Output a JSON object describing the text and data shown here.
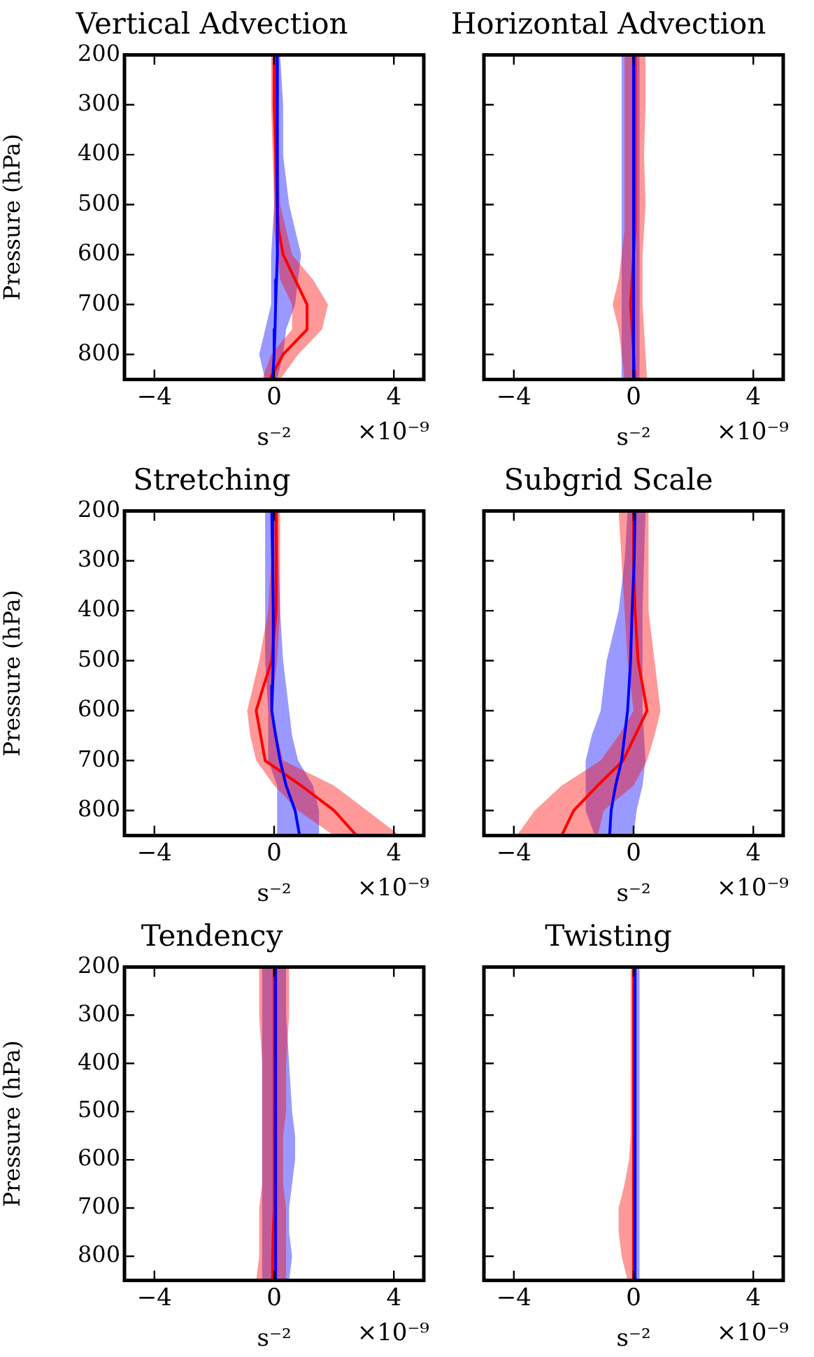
{
  "chart_data": [
    {
      "type": "line",
      "orientation": "horizontal",
      "title": "Vertical Advection",
      "xlabel": "s⁻²",
      "ylabel": "Pressure (hPa)",
      "annotations": [
        "×10⁻⁹"
      ],
      "x": [
        200,
        300,
        400,
        500,
        550,
        600,
        650,
        700,
        750,
        800,
        850
      ],
      "xlim": [
        -5,
        5
      ],
      "xticks": [
        -4,
        0,
        4
      ],
      "ylim": [
        850,
        200
      ],
      "yticks": [
        200,
        300,
        400,
        500,
        600,
        700,
        800
      ],
      "series": [
        {
          "color": "#0000ff",
          "values": [
            0.1,
            0.1,
            0.12,
            0.12,
            0.1,
            0.1,
            0.08,
            0.05,
            0.03,
            0,
            -0.05
          ],
          "lower": [
            0,
            0,
            0,
            0,
            -0.05,
            -0.1,
            -0.1,
            -0.1,
            -0.3,
            -0.5,
            -0.3
          ],
          "upper": [
            0.2,
            0.3,
            0.3,
            0.5,
            0.7,
            0.9,
            0.8,
            0.7,
            0.4,
            0.3,
            0.1
          ]
        },
        {
          "color": "#ff0000",
          "values": [
            0,
            0,
            0.05,
            0.1,
            0.15,
            0.3,
            0.7,
            1.1,
            1.1,
            0.3,
            -0.15
          ],
          "lower": [
            -0.1,
            -0.1,
            -0.05,
            0,
            0,
            0.1,
            0.2,
            0.6,
            0.6,
            -0.1,
            -0.4
          ],
          "upper": [
            0.1,
            0.1,
            0.15,
            0.2,
            0.4,
            0.6,
            1.3,
            1.8,
            1.6,
            0.8,
            0.2
          ]
        }
      ]
    },
    {
      "type": "line",
      "orientation": "horizontal",
      "title": "Horizontal Advection",
      "xlabel": "s⁻²",
      "annotations": [
        "×10⁻⁹"
      ],
      "tick_labels": "x",
      "x": [
        200,
        300,
        400,
        500,
        550,
        600,
        650,
        700,
        750,
        800,
        850
      ],
      "xlim": [
        -5,
        5
      ],
      "xticks": [
        -4,
        0,
        4
      ],
      "ylim": [
        850,
        200
      ],
      "yticks": [
        200,
        300,
        400,
        500,
        600,
        700,
        800
      ],
      "series": [
        {
          "color": "#0000ff",
          "values": [
            0,
            0,
            0,
            0,
            0,
            0,
            0,
            0,
            0,
            0,
            0
          ],
          "lower": [
            -0.4,
            -0.4,
            -0.4,
            -0.4,
            -0.4,
            -0.4,
            -0.4,
            -0.4,
            -0.4,
            -0.4,
            -0.4
          ],
          "upper": [
            0.2,
            0.2,
            0.2,
            0.2,
            0.2,
            0.2,
            0.2,
            0.2,
            0.2,
            0.2,
            0.2
          ]
        },
        {
          "color": "#ff0000",
          "values": [
            0.05,
            0.05,
            0.05,
            0.05,
            0.05,
            0,
            -0.05,
            -0.1,
            -0.05,
            0,
            0.05
          ],
          "lower": [
            -0.3,
            -0.3,
            -0.3,
            -0.3,
            -0.3,
            -0.4,
            -0.5,
            -0.7,
            -0.5,
            -0.4,
            -0.3
          ],
          "upper": [
            0.4,
            0.4,
            0.35,
            0.4,
            0.35,
            0.3,
            0.3,
            0.3,
            0.35,
            0.4,
            0.45
          ]
        }
      ]
    },
    {
      "type": "line",
      "orientation": "horizontal",
      "title": "Stretching",
      "xlabel": "s⁻²",
      "ylabel": "Pressure (hPa)",
      "annotations": [
        "×10⁻⁹"
      ],
      "x": [
        200,
        300,
        400,
        500,
        550,
        600,
        650,
        700,
        750,
        800,
        850
      ],
      "xlim": [
        -5,
        5
      ],
      "xticks": [
        -4,
        0,
        4
      ],
      "ylim": [
        850,
        200
      ],
      "yticks": [
        200,
        300,
        400,
        500,
        600,
        700,
        800
      ],
      "series": [
        {
          "color": "#0000ff",
          "values": [
            -0.08,
            -0.05,
            -0.03,
            -0.03,
            -0.05,
            -0.08,
            0.05,
            0.2,
            0.4,
            0.7,
            0.85
          ],
          "lower": [
            -0.3,
            -0.3,
            -0.3,
            -0.3,
            -0.25,
            -0.2,
            -0.2,
            -0.2,
            0.1,
            0.1,
            0.1
          ],
          "upper": [
            0.1,
            0.15,
            0.2,
            0.3,
            0.4,
            0.5,
            0.6,
            0.8,
            1.3,
            1.5,
            1.5
          ]
        },
        {
          "color": "#ff0000",
          "values": [
            0.08,
            0.08,
            0.05,
            -0.08,
            -0.35,
            -0.6,
            -0.45,
            -0.3,
            0.9,
            2,
            2.75
          ],
          "lower": [
            -0.1,
            -0.1,
            -0.2,
            -0.5,
            -0.7,
            -0.9,
            -0.8,
            -0.6,
            0,
            0.8,
            2
          ],
          "upper": [
            0.2,
            0.2,
            0.2,
            0.1,
            0,
            -0.1,
            0.1,
            0.3,
            2,
            3.1,
            4.2
          ]
        }
      ]
    },
    {
      "type": "line",
      "orientation": "horizontal",
      "title": "Subgrid Scale",
      "xlabel": "s⁻²",
      "annotations": [
        "×10⁻⁹"
      ],
      "tick_labels": "x",
      "x": [
        200,
        300,
        400,
        500,
        550,
        600,
        650,
        700,
        750,
        800,
        850
      ],
      "xlim": [
        -5,
        5
      ],
      "xticks": [
        -4,
        0,
        4
      ],
      "ylim": [
        850,
        200
      ],
      "yticks": [
        200,
        300,
        400,
        500,
        600,
        700,
        800
      ],
      "series": [
        {
          "color": "#0000ff",
          "values": [
            0.05,
            0.02,
            -0.05,
            -0.1,
            -0.15,
            -0.2,
            -0.3,
            -0.4,
            -0.6,
            -0.75,
            -0.8
          ],
          "lower": [
            -0.2,
            -0.3,
            -0.5,
            -0.9,
            -1,
            -1.1,
            -1.4,
            -1.6,
            -1.6,
            -1.6,
            -1.3
          ],
          "upper": [
            0.4,
            0.35,
            0.3,
            0.3,
            0.3,
            0.3,
            0.35,
            0.4,
            0.3,
            0.1,
            0
          ]
        },
        {
          "color": "#ff0000",
          "values": [
            0,
            0,
            0.05,
            0.15,
            0.3,
            0.45,
            0.05,
            -0.35,
            -1.2,
            -2,
            -2.4
          ],
          "lower": [
            -0.5,
            -0.4,
            -0.3,
            -0.2,
            -0.1,
            0,
            -0.5,
            -1.1,
            -2.4,
            -3.3,
            -3.9
          ],
          "upper": [
            0.5,
            0.5,
            0.5,
            0.7,
            0.8,
            0.9,
            0.7,
            0.45,
            0,
            -1,
            -1.2
          ]
        }
      ]
    },
    {
      "type": "line",
      "orientation": "horizontal",
      "title": "Tendency",
      "xlabel": "s⁻²",
      "ylabel": "Pressure (hPa)",
      "annotations": [
        "×10⁻⁹"
      ],
      "x": [
        200,
        300,
        400,
        500,
        550,
        600,
        650,
        700,
        750,
        800,
        850
      ],
      "xlim": [
        -5,
        5
      ],
      "xticks": [
        -4,
        0,
        4
      ],
      "ylim": [
        850,
        200
      ],
      "yticks": [
        200,
        300,
        400,
        500,
        600,
        700,
        800
      ],
      "series": [
        {
          "color": "#0000ff",
          "values": [
            0.05,
            0.05,
            0.05,
            0.05,
            0.05,
            0.05,
            0.05,
            0.05,
            0.05,
            0.05,
            0.05
          ],
          "lower": [
            -0.4,
            -0.4,
            -0.4,
            -0.4,
            -0.4,
            -0.4,
            -0.4,
            -0.4,
            -0.4,
            -0.4,
            -0.4
          ],
          "upper": [
            0.4,
            0.4,
            0.5,
            0.6,
            0.7,
            0.7,
            0.6,
            0.5,
            0.5,
            0.6,
            0.5
          ]
        },
        {
          "color": "#ff0000",
          "values": [
            0,
            0,
            0,
            0,
            0,
            0,
            0,
            0,
            -0.03,
            -0.05,
            -0.05
          ],
          "lower": [
            -0.5,
            -0.5,
            -0.4,
            -0.4,
            -0.4,
            -0.4,
            -0.4,
            -0.5,
            -0.5,
            -0.5,
            -0.6
          ],
          "upper": [
            0.5,
            0.5,
            0.4,
            0.4,
            0.3,
            0.3,
            0.3,
            0.4,
            0.4,
            0.4,
            0.4
          ]
        }
      ]
    },
    {
      "type": "line",
      "orientation": "horizontal",
      "title": "Twisting",
      "xlabel": "s⁻²",
      "annotations": [
        "×10⁻⁹"
      ],
      "tick_labels": "x",
      "x": [
        200,
        300,
        400,
        500,
        550,
        600,
        650,
        700,
        750,
        800,
        850
      ],
      "xlim": [
        -5,
        5
      ],
      "xticks": [
        -4,
        0,
        4
      ],
      "ylim": [
        850,
        200
      ],
      "yticks": [
        200,
        300,
        400,
        500,
        600,
        700,
        800
      ],
      "series": [
        {
          "color": "#0000ff",
          "values": [
            0.05,
            0.05,
            0.05,
            0.05,
            0.05,
            0.05,
            0.05,
            0.05,
            0.05,
            0.05,
            0.05
          ],
          "lower": [
            -0.05,
            -0.05,
            -0.05,
            -0.05,
            -0.05,
            -0.05,
            -0.05,
            -0.05,
            -0.05,
            -0.05,
            -0.05
          ],
          "upper": [
            0.2,
            0.2,
            0.2,
            0.2,
            0.2,
            0.2,
            0.2,
            0.2,
            0.2,
            0.2,
            0.2
          ]
        },
        {
          "color": "#ff0000",
          "values": [
            0,
            0,
            0,
            0,
            0,
            0,
            0,
            0,
            0,
            0,
            0
          ],
          "lower": [
            -0.1,
            -0.1,
            -0.1,
            -0.1,
            -0.1,
            -0.15,
            -0.3,
            -0.5,
            -0.5,
            -0.4,
            -0.2
          ],
          "upper": [
            0.1,
            0.1,
            0.1,
            0.1,
            0.1,
            0.1,
            0.1,
            0.1,
            0.1,
            0.05,
            0.05
          ]
        }
      ]
    }
  ]
}
